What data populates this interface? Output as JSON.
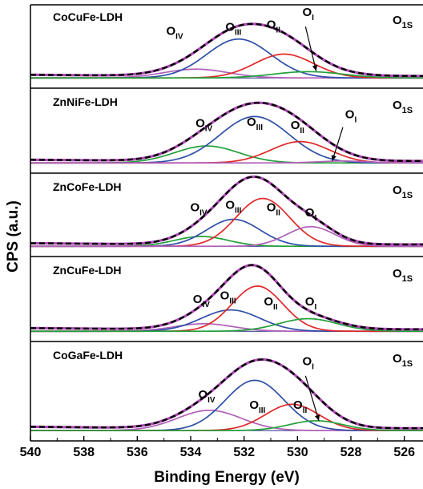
{
  "chart_data": {
    "type": "line",
    "title": "",
    "xlabel": "Binding Energy (eV)",
    "ylabel": "CPS (a.u.)",
    "xlim": [
      540,
      525.3
    ],
    "x_ticks": [
      "540",
      "538",
      "536",
      "534",
      "532",
      "530",
      "528",
      "526"
    ],
    "x_tick_values": [
      540,
      538,
      536,
      534,
      532,
      530,
      528,
      526
    ],
    "region_label_main": "O",
    "region_label_sub": "1S",
    "colors": {
      "envelope": "#000000",
      "fit": "#b048b8",
      "blue": "#2e4fa8",
      "red": "#e02828",
      "green": "#22a03a",
      "purple": "#b060b8",
      "baseline": "#2a2a80"
    },
    "panels": [
      {
        "sample": "CoCuFe-LDH",
        "components": [
          {
            "name": "OIV",
            "sub": "IV",
            "center": 533.8,
            "height": 0.14,
            "width": 1.2,
            "color": "#b060b8"
          },
          {
            "name": "OIII",
            "sub": "III",
            "center": 532.2,
            "height": 0.62,
            "width": 1.2,
            "color": "#2e4fa8"
          },
          {
            "name": "OII",
            "sub": "II",
            "center": 530.5,
            "height": 0.38,
            "width": 1.1,
            "color": "#e02828"
          },
          {
            "name": "OI",
            "sub": "I",
            "center": 529.6,
            "height": 0.1,
            "width": 1.3,
            "color": "#22a03a"
          }
        ],
        "labels": [
          {
            "sub": "IV",
            "x": 534.6,
            "y": 0.7
          },
          {
            "sub": "III",
            "x": 532.4,
            "y": 0.76
          },
          {
            "sub": "II",
            "x": 530.9,
            "y": 0.8
          },
          {
            "sub": "I",
            "x": 529.6,
            "y": 1.0
          }
        ],
        "arrow": {
          "from_x": 529.7,
          "from_y": 0.83,
          "to_x": 529.3,
          "to_y": 0.12
        }
      },
      {
        "sample": "ZnNiFe-LDH",
        "components": [
          {
            "name": "OIV",
            "sub": "IV",
            "center": 533.4,
            "height": 0.27,
            "width": 1.2,
            "color": "#22a03a"
          },
          {
            "name": "OIII",
            "sub": "III",
            "center": 531.6,
            "height": 0.74,
            "width": 1.3,
            "color": "#2e4fa8"
          },
          {
            "name": "OII",
            "sub": "II",
            "center": 529.9,
            "height": 0.34,
            "width": 1.1,
            "color": "#e02828"
          },
          {
            "name": "OI",
            "sub": "I",
            "center": 528.3,
            "height": 0.03,
            "width": 0.9,
            "color": "#b060b8"
          }
        ],
        "labels": [
          {
            "sub": "IV",
            "x": 533.5,
            "y": 0.58
          },
          {
            "sub": "III",
            "x": 531.6,
            "y": 0.6
          },
          {
            "sub": "II",
            "x": 530.0,
            "y": 0.55
          },
          {
            "sub": "I",
            "x": 528.0,
            "y": 0.72
          }
        ],
        "arrow": {
          "from_x": 528.3,
          "from_y": 0.58,
          "to_x": 528.7,
          "to_y": 0.04
        }
      },
      {
        "sample": "ZnCoFe-LDH",
        "components": [
          {
            "name": "OIV",
            "sub": "IV",
            "center": 533.6,
            "height": 0.16,
            "width": 1.0,
            "color": "#22a03a"
          },
          {
            "name": "OIII",
            "sub": "III",
            "center": 532.4,
            "height": 0.44,
            "width": 1.0,
            "color": "#2e4fa8"
          },
          {
            "name": "OII",
            "sub": "II",
            "center": 531.3,
            "height": 0.78,
            "width": 1.0,
            "color": "#e02828"
          },
          {
            "name": "OI",
            "sub": "I",
            "center": 529.5,
            "height": 0.32,
            "width": 0.9,
            "color": "#b060b8"
          }
        ],
        "labels": [
          {
            "sub": "IV",
            "x": 533.7,
            "y": 0.58
          },
          {
            "sub": "III",
            "x": 532.4,
            "y": 0.62
          },
          {
            "sub": "II",
            "x": 530.9,
            "y": 0.58
          },
          {
            "sub": "I",
            "x": 529.5,
            "y": 0.5
          }
        ],
        "arrow": null
      },
      {
        "sample": "ZnCuFe-LDH",
        "components": [
          {
            "name": "OIV",
            "sub": "IV",
            "center": 533.5,
            "height": 0.12,
            "width": 1.1,
            "color": "#b060b8"
          },
          {
            "name": "OIII",
            "sub": "III",
            "center": 532.5,
            "height": 0.34,
            "width": 1.1,
            "color": "#2e4fa8"
          },
          {
            "name": "OII",
            "sub": "II",
            "center": 531.5,
            "height": 0.72,
            "width": 0.95,
            "color": "#e02828"
          },
          {
            "name": "OI",
            "sub": "I",
            "center": 529.6,
            "height": 0.2,
            "width": 1.1,
            "color": "#22a03a"
          }
        ],
        "labels": [
          {
            "sub": "IV",
            "x": 533.6,
            "y": 0.46
          },
          {
            "sub": "III",
            "x": 532.6,
            "y": 0.52
          },
          {
            "sub": "II",
            "x": 531.0,
            "y": 0.42
          },
          {
            "sub": "I",
            "x": 529.5,
            "y": 0.42
          }
        ],
        "arrow": null
      },
      {
        "sample": "CoGaFe-LDH",
        "components": [
          {
            "name": "OIV",
            "sub": "IV",
            "center": 533.3,
            "height": 0.27,
            "width": 1.2,
            "color": "#b060b8"
          },
          {
            "name": "OIII",
            "sub": "III",
            "center": 531.6,
            "height": 0.67,
            "width": 1.1,
            "color": "#2e4fa8"
          },
          {
            "name": "OII",
            "sub": "II",
            "center": 530.2,
            "height": 0.35,
            "width": 1.0,
            "color": "#e02828"
          },
          {
            "name": "OI",
            "sub": "I",
            "center": 529.3,
            "height": 0.13,
            "width": 1.0,
            "color": "#22a03a"
          }
        ],
        "labels": [
          {
            "sub": "IV",
            "x": 533.4,
            "y": 0.44
          },
          {
            "sub": "III",
            "x": 531.5,
            "y": 0.3
          },
          {
            "sub": "II",
            "x": 529.9,
            "y": 0.3
          },
          {
            "sub": "I",
            "x": 529.6,
            "y": 0.88
          }
        ],
        "arrow": {
          "from_x": 529.7,
          "from_y": 0.74,
          "to_x": 529.2,
          "to_y": 0.14
        }
      }
    ]
  }
}
